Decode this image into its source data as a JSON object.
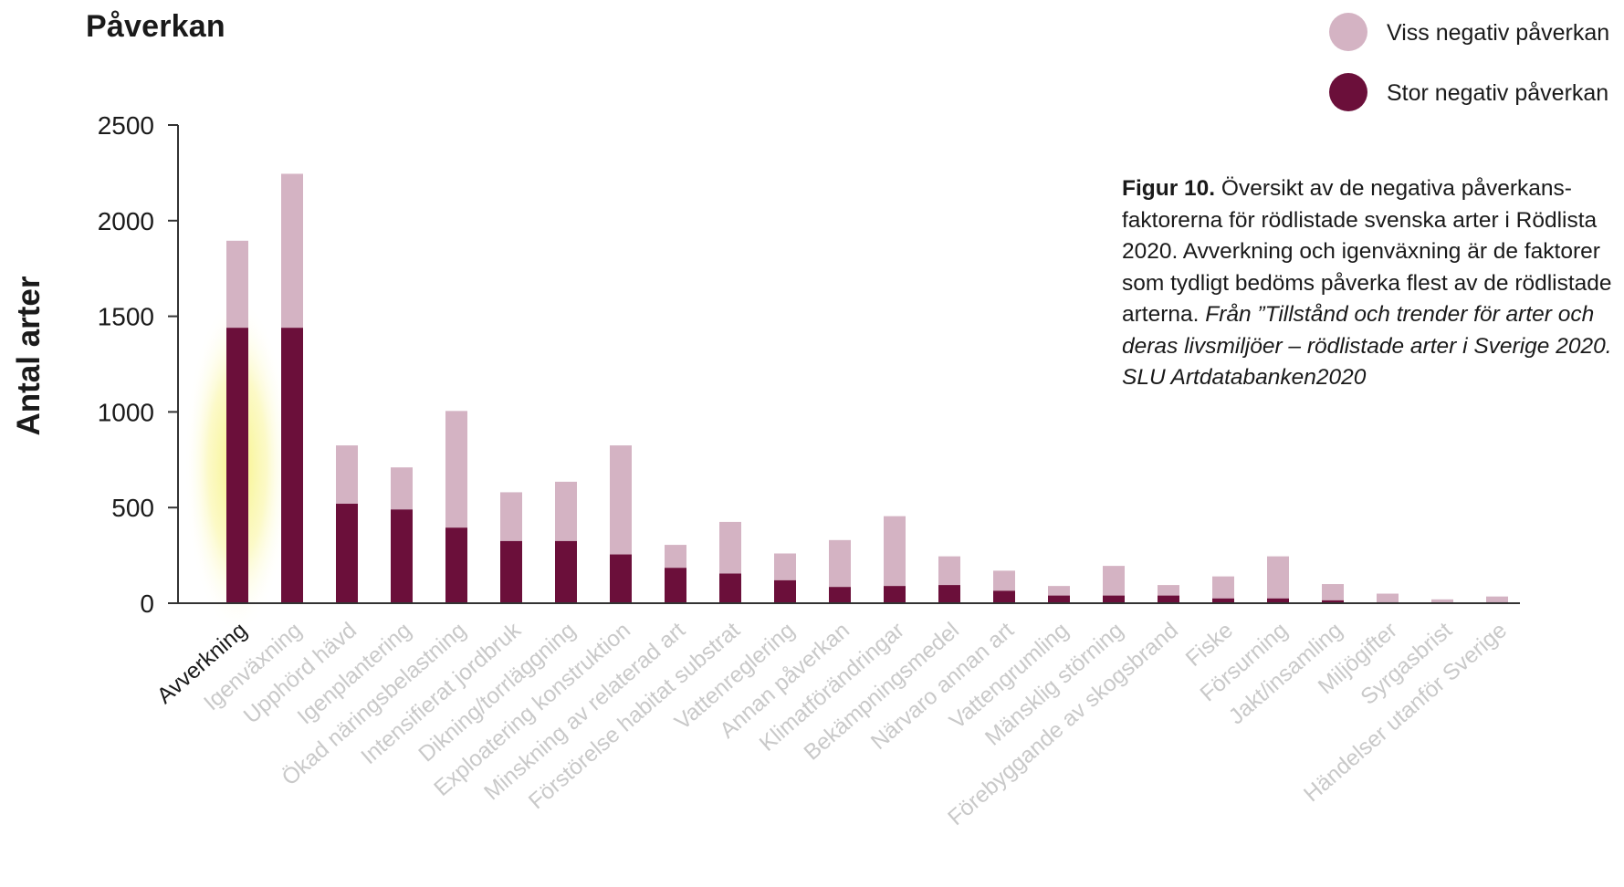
{
  "chart_data": {
    "type": "bar",
    "stacked": true,
    "title": "Påverkan",
    "ylabel": "Antal arter",
    "xlabel": "",
    "ylim": [
      0,
      2500
    ],
    "yticks": [
      0,
      500,
      1000,
      1500,
      2000,
      2500
    ],
    "grid": false,
    "legend_position": "top-right",
    "categories": [
      "Avverkning",
      "Igenväxning",
      "Upphörd hävd",
      "Igenplantering",
      "Ökad näringsbelastning",
      "Intensifierat jordbruk",
      "Dikning/torrläggning",
      "Exploatering konstruktion",
      "Minskning av relaterad art",
      "Förstörelse habitat substrat",
      "Vattenreglering",
      "Annan påverkan",
      "Klimatförändringar",
      "Bekämpningsmedel",
      "Närvaro annan art",
      "Vattengrumling",
      "Mänsklig störning",
      "Förebyggande av skogsbrand",
      "Fiske",
      "Försurning",
      "Jakt/insamling",
      "Miljögifter",
      "Syrgasbrist",
      "Händelser utanför Sverige"
    ],
    "highlighted_category": "Avverkning",
    "series": [
      {
        "name": "Stor negativ påverkan",
        "color": "#6b0f3a",
        "values": [
          1440,
          1440,
          520,
          490,
          395,
          325,
          325,
          255,
          185,
          155,
          120,
          85,
          90,
          95,
          65,
          40,
          40,
          40,
          25,
          25,
          15,
          5,
          3,
          5
        ]
      },
      {
        "name": "Viss negativ påverkan",
        "color": "#d4b3c3",
        "values": [
          455,
          805,
          305,
          220,
          610,
          255,
          310,
          570,
          120,
          270,
          140,
          245,
          365,
          150,
          105,
          50,
          155,
          55,
          115,
          220,
          85,
          45,
          17,
          30
        ]
      }
    ]
  },
  "colors": {
    "highlight_glow": "#f7f27a",
    "muted_label": "#c9c9c9",
    "axis": "#333333"
  },
  "caption": {
    "bold": "Figur 10.",
    "text": " Översikt av de negativa påverkans­faktorerna för rödlistade svenska arter i Röd­lista 2020. Avverkning och igenväxning är de faktorer som tydligt bedöms påverka flest av de rödlistade arterna. ",
    "italic": "Från ”Tillstånd och tren­der för arter och deras livsmiljöer – rödlistade arter i Sverige 2020. SLU Artdatabanken2020"
  }
}
